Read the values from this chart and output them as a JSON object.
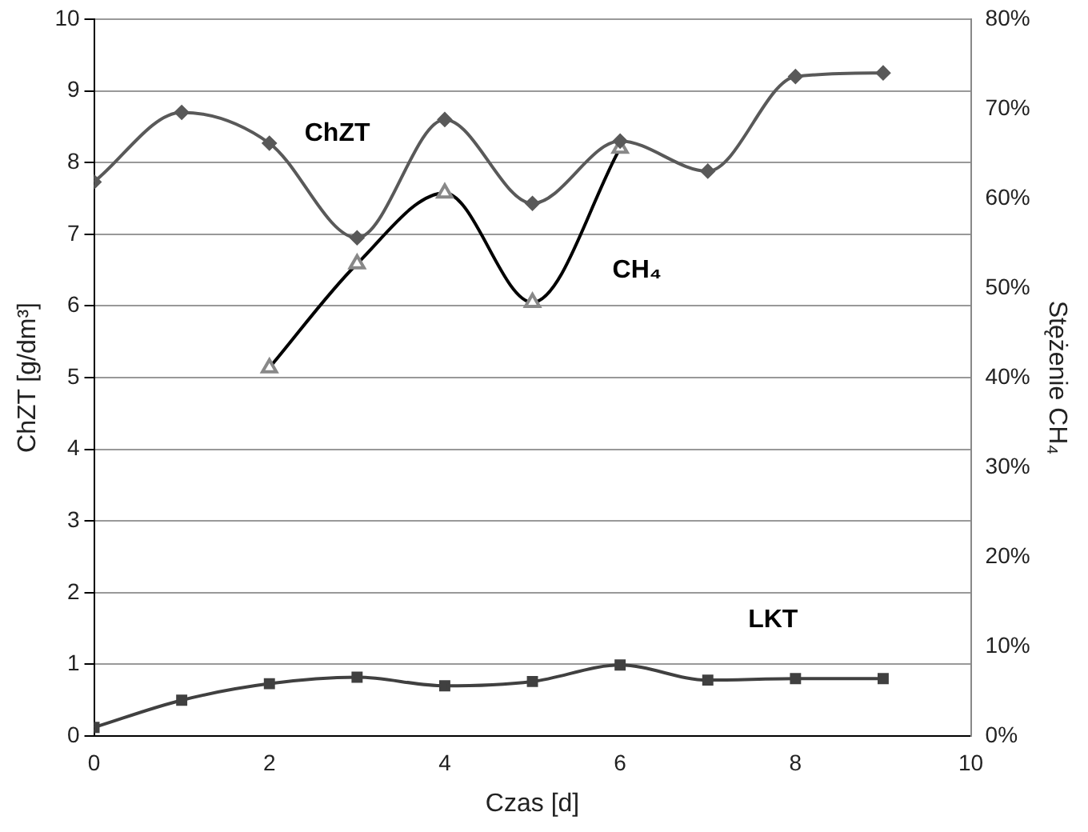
{
  "chart_data": {
    "type": "line",
    "xlabel": "Czas [d]",
    "ylabel": "ChZT [g/dm³]",
    "y2label": "Stężenie CH₄",
    "xlim": [
      0,
      10
    ],
    "xticks": [
      0,
      2,
      4,
      6,
      8,
      10
    ],
    "ylim": [
      0,
      10
    ],
    "yticks": [
      0,
      1,
      2,
      3,
      4,
      5,
      6,
      7,
      8,
      9,
      10
    ],
    "y2lim": [
      0,
      80
    ],
    "y2ticks": [
      {
        "value": 0,
        "label": "0%"
      },
      {
        "value": 10,
        "label": "10%"
      },
      {
        "value": 20,
        "label": "20%"
      },
      {
        "value": 30,
        "label": "30%"
      },
      {
        "value": 40,
        "label": "40%"
      },
      {
        "value": 50,
        "label": "50%"
      },
      {
        "value": 60,
        "label": "60%"
      },
      {
        "value": 70,
        "label": "70%"
      },
      {
        "value": 80,
        "label": "80%"
      }
    ],
    "grid": "y",
    "legend": false,
    "series": [
      {
        "name": "ChZT",
        "color": "#595959",
        "marker": "diamond",
        "x": [
          0,
          1,
          2,
          3,
          4,
          5,
          6,
          7,
          8,
          9
        ],
        "values": [
          7.73,
          8.7,
          8.27,
          6.95,
          8.6,
          7.43,
          8.3,
          7.88,
          9.2,
          9.25
        ]
      },
      {
        "name": "CH₄",
        "color": "#000000",
        "marker": "triangle",
        "axis": "y2",
        "x": [
          2,
          3,
          4,
          5,
          6
        ],
        "values": [
          41.1,
          52.7,
          60.6,
          48.4,
          65.6
        ]
      },
      {
        "name": "LKT",
        "color": "#404040",
        "marker": "square",
        "x": [
          0,
          1,
          2,
          3,
          4,
          5,
          6,
          7,
          8,
          9
        ],
        "values": [
          0.12,
          0.5,
          0.73,
          0.82,
          0.7,
          0.76,
          0.99,
          0.78,
          0.8,
          0.8
        ]
      }
    ]
  }
}
